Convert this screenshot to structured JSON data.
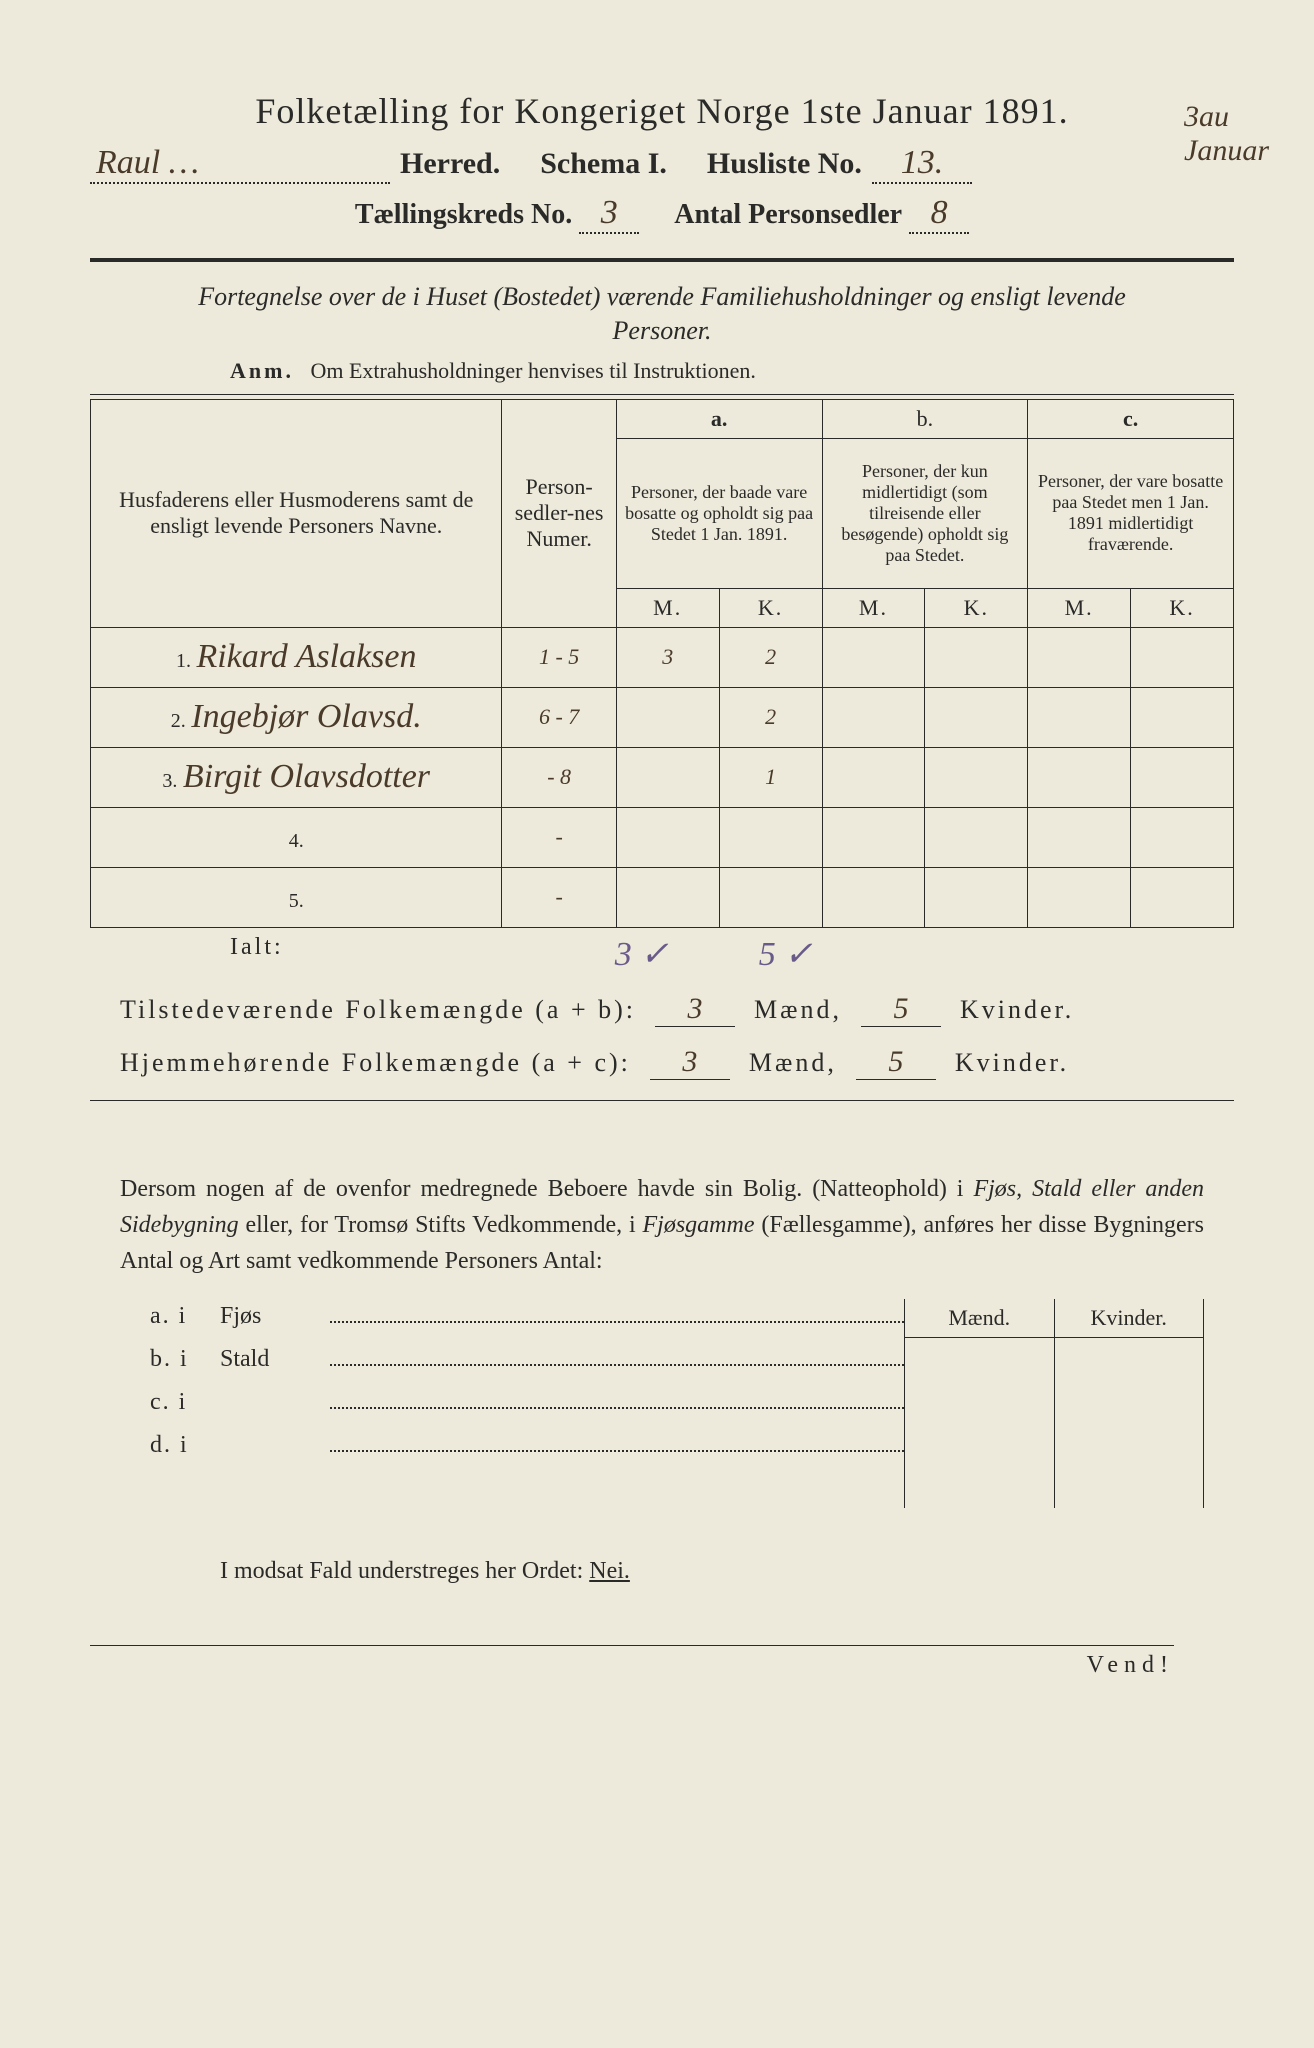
{
  "doc": {
    "title": "Folketælling for Kongeriget Norge 1ste Januar 1891.",
    "herred_hand": "Raul …",
    "herred_label": "Herred.",
    "schema": "Schema I.",
    "husliste_label": "Husliste No.",
    "husliste_no": "13.",
    "kreds_label": "Tællingskreds No.",
    "kreds_no": "3",
    "antal_label": "Antal Personsedler",
    "antal": "8",
    "margin_top": "3au",
    "margin_bot": "Januar",
    "fortegnelse": "Fortegnelse over de i Huset (Bostedet) værende Familiehusholdninger og ensligt levende Personer.",
    "anm_label": "Anm.",
    "anm_text": "Om Extrahusholdninger henvises til Instruktionen."
  },
  "headers": {
    "col_name": "Husfaderens eller Husmoderens samt de ensligt levende Personers Navne.",
    "col_num": "Person-sedler-nes Numer.",
    "group_a_lbl": "a.",
    "group_a": "Personer, der baade vare bosatte og opholdt sig paa Stedet 1 Jan. 1891.",
    "group_b_lbl": "b.",
    "group_b": "Personer, der kun midlertidigt (som tilreisende eller besøgende) opholdt sig paa Stedet.",
    "group_c_lbl": "c.",
    "group_c": "Personer, der vare bosatte paa Stedet men 1 Jan. 1891 midlertidigt fraværende.",
    "m": "M.",
    "k": "K."
  },
  "rows": [
    {
      "idx": "1.",
      "name": "Rikard Aslaksen",
      "num": "1 - 5",
      "aM": "3",
      "aK": "2",
      "bM": "",
      "bK": "",
      "cM": "",
      "cK": ""
    },
    {
      "idx": "2.",
      "name": "Ingebjør Olavsd.",
      "num": "6 - 7",
      "aM": "",
      "aK": "2",
      "bM": "",
      "bK": "",
      "cM": "",
      "cK": ""
    },
    {
      "idx": "3.",
      "name": "Birgit Olavsdotter",
      "num": "- 8",
      "aM": "",
      "aK": "1",
      "bM": "",
      "bK": "",
      "cM": "",
      "cK": ""
    },
    {
      "idx": "4.",
      "name": "",
      "num": "-",
      "aM": "",
      "aK": "",
      "bM": "",
      "bK": "",
      "cM": "",
      "cK": ""
    },
    {
      "idx": "5.",
      "name": "",
      "num": "-",
      "aM": "",
      "aK": "",
      "bM": "",
      "bK": "",
      "cM": "",
      "cK": ""
    }
  ],
  "ialt": {
    "label": "Ialt:",
    "aM": "3 ✓",
    "aK": "5 ✓"
  },
  "summary": {
    "tilstede_lbl": "Tilstedeværende Folkemængde (a + b):",
    "hjemme_lbl": "Hjemmehørende Folkemængde (a + c):",
    "maend": "Mænd,",
    "kvinder": "Kvinder.",
    "t_m": "3",
    "t_k": "5",
    "h_m": "3",
    "h_k": "5"
  },
  "dersom": {
    "text1": "Dersom nogen af de ovenfor medregnede Beboere havde sin Bolig. (Natteophold) i ",
    "ital1": "Fjøs, Stald eller anden Sidebygning",
    "text2": " eller, for Tromsø Stifts Vedkommende, i ",
    "ital2": "Fjøsgamme",
    "text3": " (Fællesgamme), anføres her disse Bygningers Antal og Art samt vedkommende Personers Antal:"
  },
  "sidebygn": {
    "maend": "Mænd.",
    "kvinder": "Kvinder.",
    "rows": [
      {
        "lbl": "a.  i",
        "cat": "Fjøs"
      },
      {
        "lbl": "b.  i",
        "cat": "Stald"
      },
      {
        "lbl": "c.  i",
        "cat": ""
      },
      {
        "lbl": "d.  i",
        "cat": ""
      }
    ]
  },
  "modsat": {
    "text": "I modsat Fald understreges her Ordet: ",
    "nei": "Nei."
  },
  "vend": "Vend!"
}
